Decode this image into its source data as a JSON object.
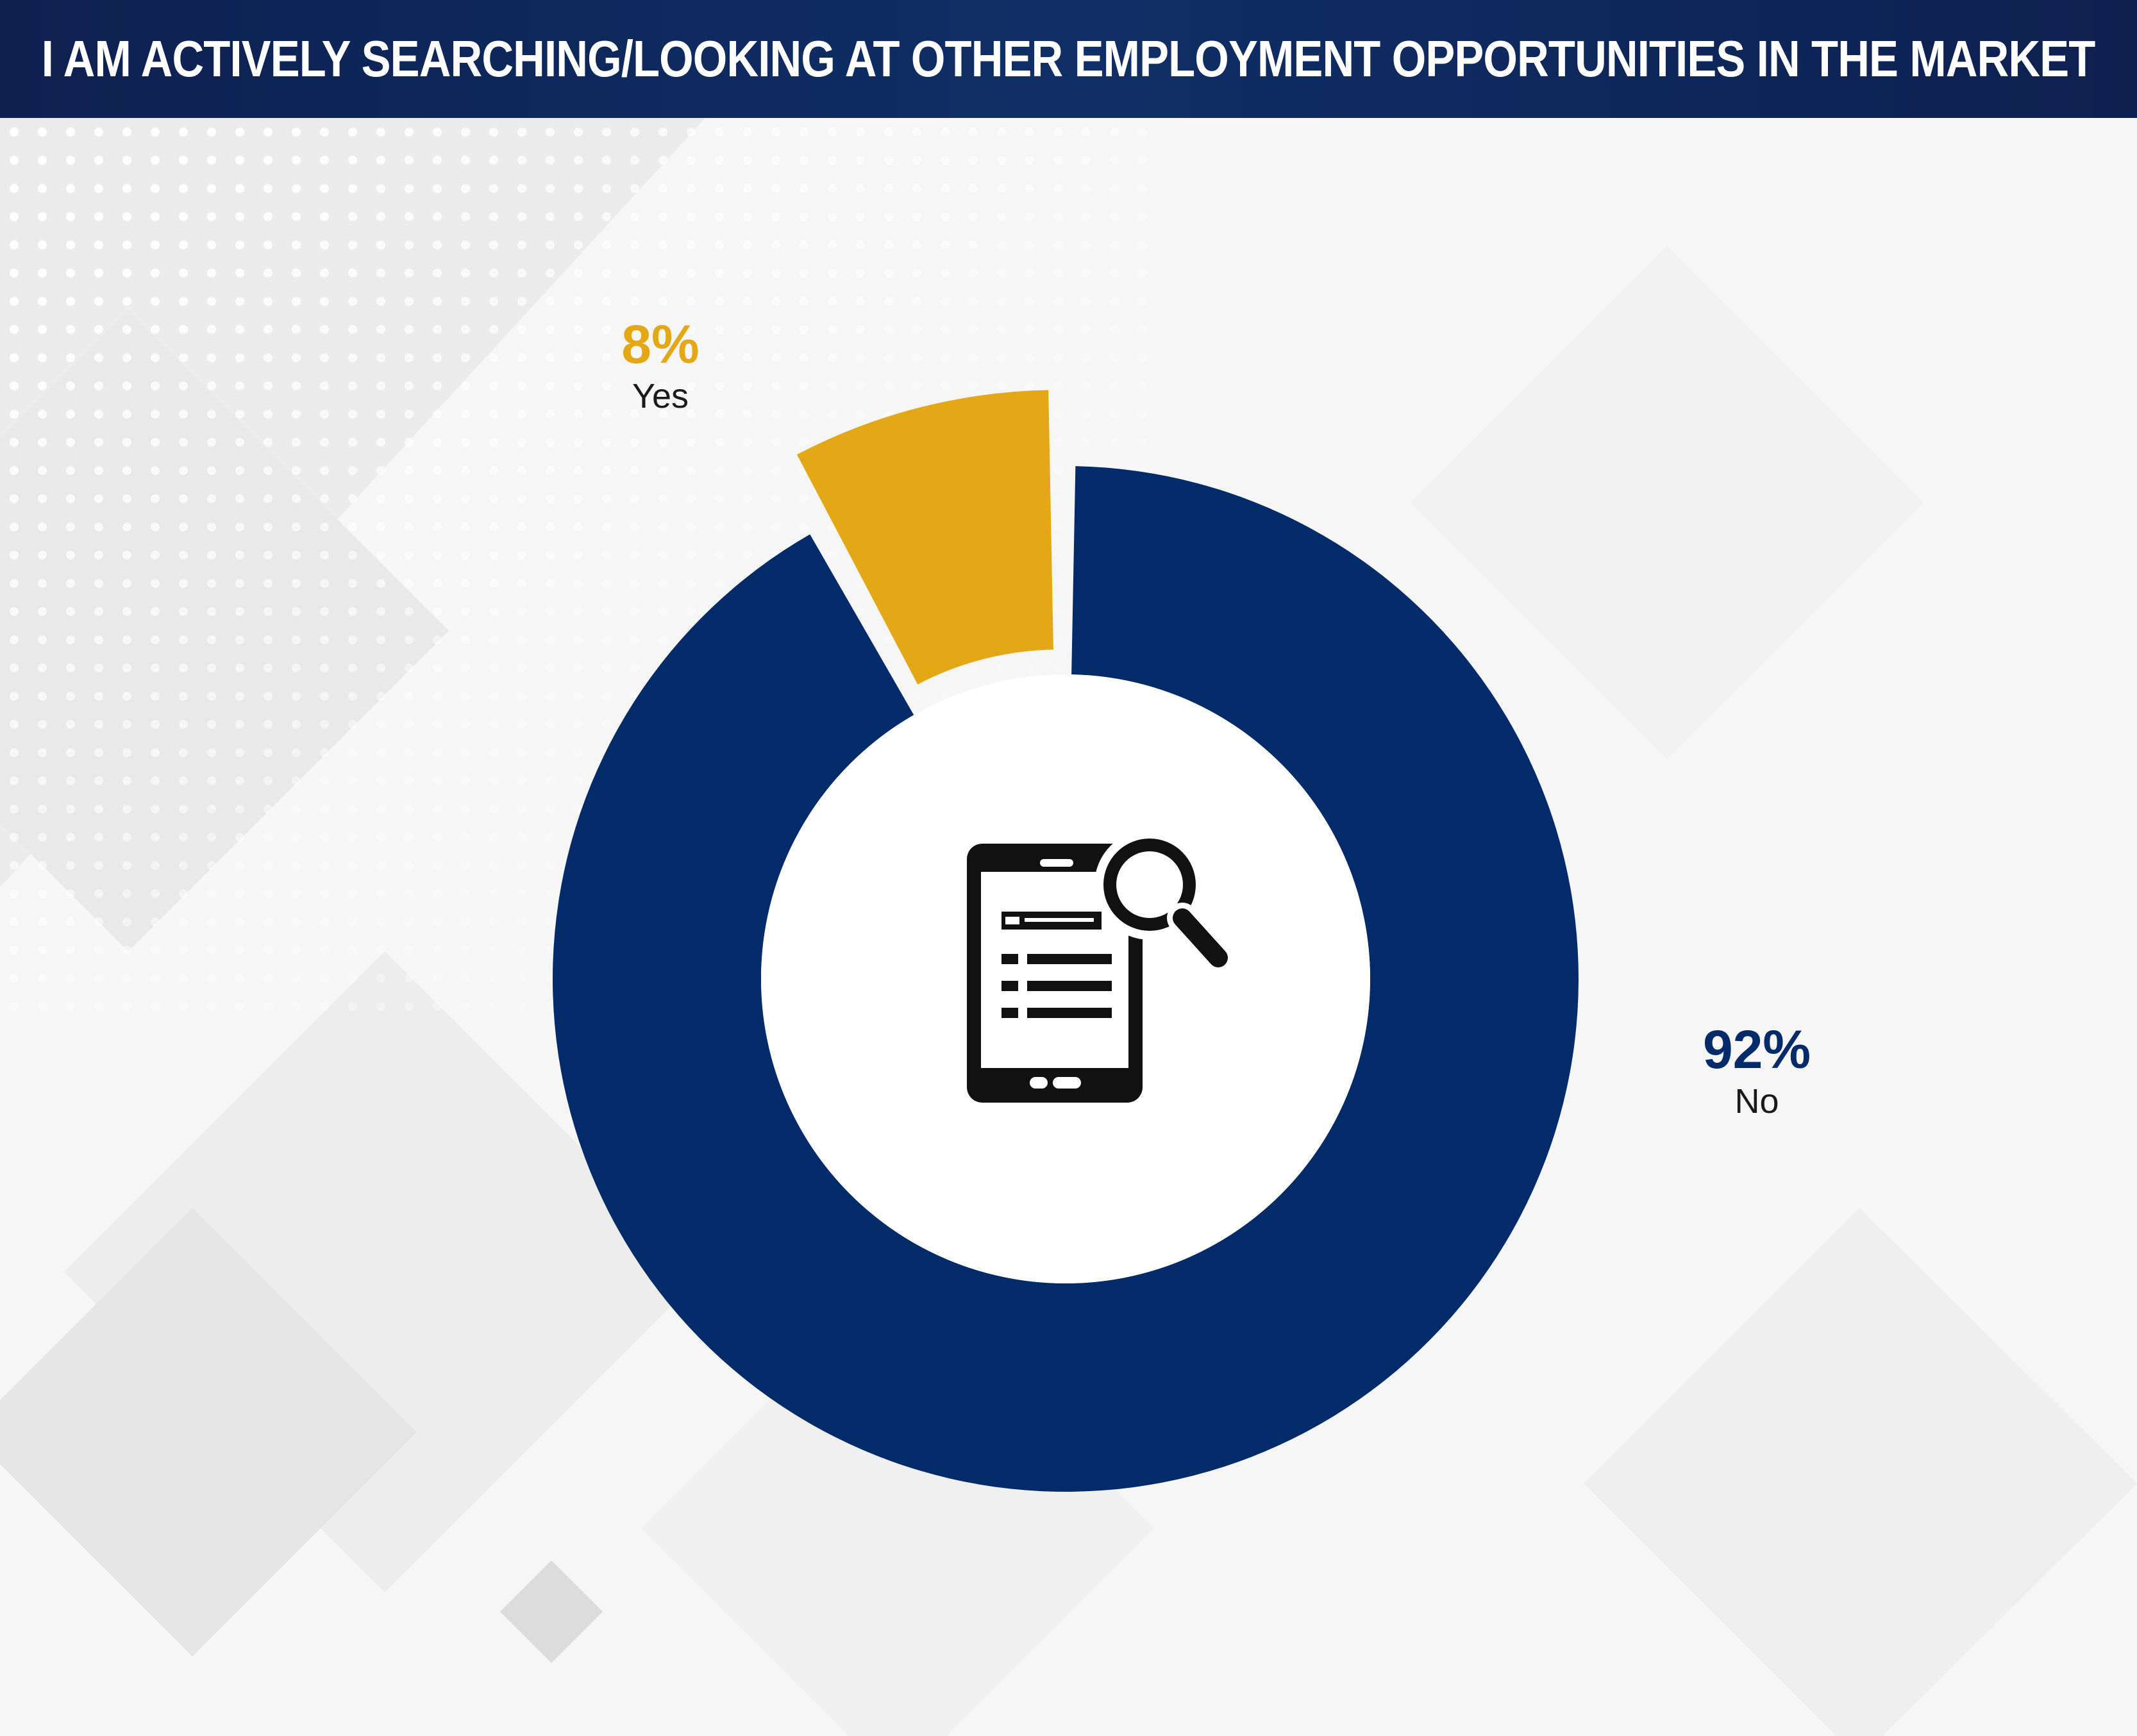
{
  "header": {
    "title": "I AM ACTIVELY SEARCHING/LOOKING AT OTHER EMPLOYMENT OPPORTUNITIES IN THE MARKET"
  },
  "colors": {
    "header_bg": "#0f2a5e",
    "no": "#032b69",
    "yes": "#e4a817",
    "icon": "#111111"
  },
  "center_icon": "phone-search-icon",
  "chart_data": {
    "type": "pie",
    "donut": true,
    "title": "I AM ACTIVELY SEARCHING/LOOKING AT OTHER EMPLOYMENT OPPORTUNITIES IN THE MARKET",
    "slices": [
      {
        "label": "No",
        "value": 92,
        "display": "92%",
        "color": "#032b69"
      },
      {
        "label": "Yes",
        "value": 8,
        "display": "8%",
        "color": "#e4a817",
        "exploded": true
      }
    ]
  }
}
